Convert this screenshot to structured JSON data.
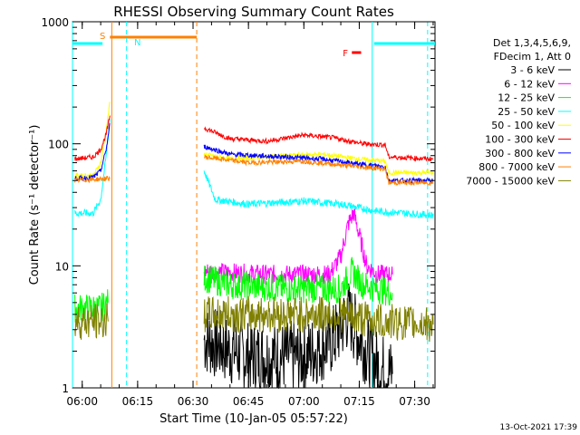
{
  "chart_data": {
    "type": "line",
    "title": "RHESSI Observing Summary Count Rates",
    "xlabel": "Start Time (10-Jan-05 05:57:22)",
    "ylabel": "Count Rate (s⁻¹ detector⁻¹)",
    "yscale": "log",
    "xlim": [
      "05:57:22",
      "07:35:30"
    ],
    "ylim": [
      1,
      1000
    ],
    "x_ticks": [
      "06:00",
      "06:15",
      "06:30",
      "06:45",
      "07:00",
      "07:15",
      "07:30"
    ],
    "y_ticks": [
      "1",
      "10",
      "100",
      "1000"
    ],
    "legend_header": [
      "Det 1,3,4,5,6,9,",
      "FDecim 1, Att 0"
    ],
    "legend_position": "right",
    "footer_stamp": "13-Oct-2021 17:39",
    "flags": [
      {
        "label": "S",
        "color": "#ff8000",
        "start": "06:07:30",
        "end": "06:31:00"
      },
      {
        "label": "N",
        "color": "#00ffff",
        "start": "05:57:22",
        "end": "06:05:30"
      },
      {
        "label": "N",
        "color": "#00ffff",
        "start": "07:19:00",
        "end": "07:35:30"
      },
      {
        "label": "F",
        "color": "#ff0000",
        "start": "07:13:00",
        "end": "07:15:30"
      }
    ],
    "vlines": [
      {
        "time": "05:57:22",
        "color": "#00ffff",
        "style": "solid"
      },
      {
        "time": "06:08:00",
        "color": "#ff8000",
        "style": "solid"
      },
      {
        "time": "06:12:00",
        "color": "#00ffff",
        "style": "dashed"
      },
      {
        "time": "06:31:00",
        "color": "#ff8000",
        "style": "dashed"
      },
      {
        "time": "07:18:30",
        "color": "#00ffff",
        "style": "solid"
      },
      {
        "time": "07:33:30",
        "color": "#00ffff",
        "style": "dashed"
      }
    ],
    "series": [
      {
        "name": "3 - 6 keV",
        "color": "#000000",
        "noise": 0.3,
        "segments": [
          [
            [
              "06:33:00",
              2.5
            ],
            [
              "06:45:00",
              1.8
            ],
            [
              "07:00:00",
              1.8
            ],
            [
              "07:08:00",
              2.5
            ],
            [
              "07:12:00",
              4
            ],
            [
              "07:14:00",
              3
            ],
            [
              "07:17:00",
              2
            ],
            [
              "07:20:00",
              1.5
            ],
            [
              "07:24:00",
              1.3
            ]
          ]
        ]
      },
      {
        "name": "6 - 12 keV",
        "color": "#ff00ff",
        "noise": 0.08,
        "segments": [
          [
            [
              "06:33:00",
              9
            ],
            [
              "06:50:00",
              8.5
            ],
            [
              "07:07:00",
              8.5
            ],
            [
              "07:10:00",
              12
            ],
            [
              "07:12:00",
              22
            ],
            [
              "07:13:30",
              27
            ],
            [
              "07:15:00",
              18
            ],
            [
              "07:17:00",
              10
            ],
            [
              "07:20:00",
              8.5
            ],
            [
              "07:24:00",
              8.5
            ]
          ]
        ]
      },
      {
        "name": "12 - 25 keV",
        "color": "#00ff00",
        "noise": 0.12,
        "segments": [
          [
            [
              "05:58:00",
              4.5
            ],
            [
              "06:05:00",
              4.5
            ],
            [
              "06:07:00",
              5
            ]
          ],
          [
            [
              "06:33:00",
              8
            ],
            [
              "06:40:00",
              7
            ],
            [
              "06:55:00",
              6.5
            ],
            [
              "07:10:00",
              6.5
            ],
            [
              "07:13:00",
              9
            ],
            [
              "07:16:00",
              7
            ],
            [
              "07:24:00",
              6
            ]
          ]
        ]
      },
      {
        "name": "25 - 50 keV",
        "color": "#00ffff",
        "noise": 0.03,
        "segments": [
          [
            [
              "05:58:00",
              27
            ],
            [
              "06:03:00",
              27
            ],
            [
              "06:05:00",
              35
            ],
            [
              "06:06:30",
              80
            ],
            [
              "06:07:30",
              160
            ]
          ],
          [
            [
              "06:33:00",
              60
            ],
            [
              "06:36:00",
              35
            ],
            [
              "06:45:00",
              32
            ],
            [
              "07:00:00",
              34
            ],
            [
              "07:10:00",
              32
            ],
            [
              "07:20:00",
              28
            ],
            [
              "07:35:00",
              26
            ]
          ]
        ]
      },
      {
        "name": "50 - 100 keV",
        "color": "#ffff00",
        "noise": 0.02,
        "segments": [
          [
            [
              "05:58:00",
              55
            ],
            [
              "06:03:00",
              55
            ],
            [
              "06:05:00",
              70
            ],
            [
              "06:06:30",
              130
            ],
            [
              "06:07:30",
              220
            ]
          ],
          [
            [
              "06:33:00",
              82
            ],
            [
              "06:40:00",
              75
            ],
            [
              "06:55:00",
              80
            ],
            [
              "07:05:00",
              82
            ],
            [
              "07:15:00",
              75
            ],
            [
              "07:22:00",
              72
            ],
            [
              "07:23:00",
              58
            ],
            [
              "07:35:00",
              58
            ]
          ]
        ]
      },
      {
        "name": "100 - 300 keV",
        "color": "#ff0000",
        "noise": 0.02,
        "segments": [
          [
            [
              "05:58:00",
              75
            ],
            [
              "06:03:00",
              78
            ],
            [
              "06:05:00",
              90
            ],
            [
              "06:06:30",
              120
            ],
            [
              "06:07:30",
              170
            ]
          ],
          [
            [
              "06:33:00",
              135
            ],
            [
              "06:40:00",
              110
            ],
            [
              "06:50:00",
              105
            ],
            [
              "07:00:00",
              118
            ],
            [
              "07:08:00",
              112
            ],
            [
              "07:16:00",
              100
            ],
            [
              "07:22:00",
              98
            ],
            [
              "07:23:00",
              78
            ],
            [
              "07:35:00",
              75
            ]
          ]
        ]
      },
      {
        "name": "300 - 800 keV",
        "color": "#0000ff",
        "noise": 0.02,
        "segments": [
          [
            [
              "05:58:00",
              52
            ],
            [
              "06:03:00",
              53
            ],
            [
              "06:05:00",
              60
            ],
            [
              "06:06:30",
              90
            ],
            [
              "06:07:30",
              145
            ]
          ],
          [
            [
              "06:33:00",
              95
            ],
            [
              "06:40:00",
              82
            ],
            [
              "06:55:00",
              78
            ],
            [
              "07:05:00",
              75
            ],
            [
              "07:15:00",
              68
            ],
            [
              "07:22:00",
              65
            ],
            [
              "07:23:00",
              50
            ],
            [
              "07:35:00",
              50
            ]
          ]
        ]
      },
      {
        "name": "800 - 7000 keV",
        "color": "#ff8000",
        "noise": 0.02,
        "segments": [
          [
            [
              "05:58:00",
              50
            ],
            [
              "06:07:30",
              52
            ]
          ],
          [
            [
              "06:33:00",
              78
            ],
            [
              "06:45:00",
              70
            ],
            [
              "07:00:00",
              72
            ],
            [
              "07:10:00",
              67
            ],
            [
              "07:22:00",
              62
            ],
            [
              "07:23:00",
              48
            ],
            [
              "07:35:00",
              48
            ]
          ]
        ]
      },
      {
        "name": "7000 - 15000 keV",
        "color": "#808000",
        "noise": 0.15,
        "segments": [
          [
            [
              "05:58:00",
              3.5
            ],
            [
              "06:07:00",
              3.5
            ]
          ],
          [
            [
              "06:33:00",
              4
            ],
            [
              "06:45:00",
              4
            ],
            [
              "07:00:00",
              4
            ],
            [
              "07:10:00",
              4
            ],
            [
              "07:20:00",
              3.5
            ],
            [
              "07:35:00",
              3.3
            ]
          ]
        ]
      }
    ]
  }
}
